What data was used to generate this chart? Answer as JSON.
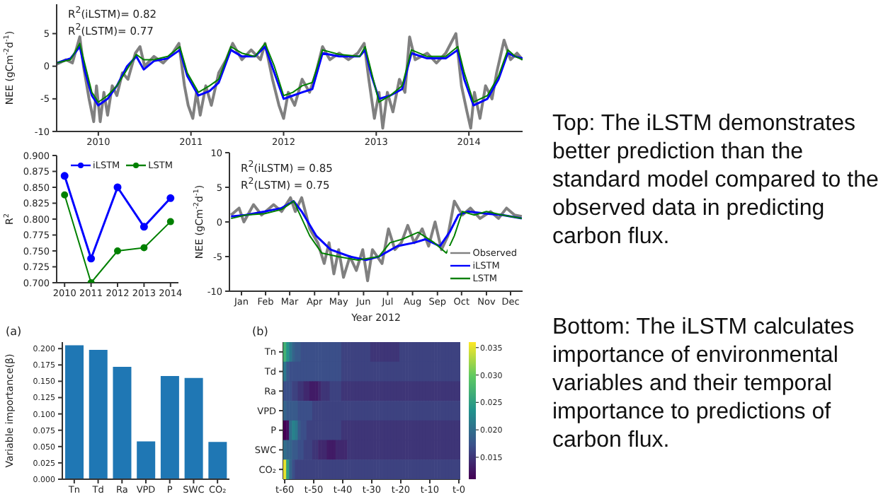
{
  "chart_data": [
    {
      "type": "line",
      "ylabel": "NEE (gCm$^{-2}$d$^{-1}$)",
      "annotations": [
        "R$^{2}$(iLSTM)= 0.82",
        "R$^{2}$(LSTM)= 0.77"
      ],
      "xlim": [
        2009.55,
        2014.58
      ],
      "xticks": [
        2010,
        2011,
        2012,
        2013,
        2014
      ],
      "ylim": [
        -10,
        9.5
      ],
      "yticks": [
        -10,
        -5,
        0,
        5
      ],
      "marker": "none",
      "line_style": "solid",
      "series": [
        {
          "color": "#808080",
          "x": [
            2009.55,
            2009.65,
            2009.72,
            2009.8,
            2009.84,
            2009.9,
            2009.95,
            2009.98,
            2010.02,
            2010.06,
            2010.1,
            2010.15,
            2010.2,
            2010.26,
            2010.32,
            2010.4,
            2010.45,
            2010.5,
            2010.6,
            2010.7,
            2010.8,
            2010.87,
            2010.93,
            2010.97,
            2011.02,
            2011.06,
            2011.1,
            2011.16,
            2011.22,
            2011.3,
            2011.38,
            2011.45,
            2011.55,
            2011.65,
            2011.75,
            2011.8,
            2011.88,
            2011.95,
            2012.0,
            2012.05,
            2012.12,
            2012.2,
            2012.28,
            2012.35,
            2012.42,
            2012.5,
            2012.6,
            2012.7,
            2012.8,
            2012.87,
            2012.92,
            2012.98,
            2013.03,
            2013.07,
            2013.12,
            2013.18,
            2013.25,
            2013.31,
            2013.36,
            2013.42,
            2013.55,
            2013.65,
            2013.75,
            2013.86,
            2013.92,
            2013.98,
            2014.02,
            2014.06,
            2014.12,
            2014.18,
            2014.25,
            2014.3,
            2014.38,
            2014.45,
            2014.52,
            2014.58
          ],
          "values": [
            0.3,
            1,
            0.5,
            4.5,
            0,
            -5,
            -8.5,
            -3,
            -8.5,
            -4,
            -7.5,
            -3,
            -4.5,
            -1,
            -2,
            2,
            3,
            0,
            1.5,
            0.5,
            2,
            3.5,
            -3,
            -6,
            -8,
            -4,
            -7.5,
            -3,
            -6,
            -1,
            1,
            3.5,
            1,
            2.5,
            1,
            3.5,
            -2,
            -6,
            -8,
            -4,
            -6,
            -2,
            -4,
            -1,
            3,
            1,
            2,
            1,
            2,
            3.5,
            -2,
            -8,
            -4,
            -9.5,
            -4,
            -7,
            -2,
            -4,
            4.5,
            1,
            2,
            0.5,
            2,
            5,
            -3,
            -7,
            -9.5,
            -4,
            -8,
            -3,
            -5,
            -1,
            4,
            1,
            2,
            1
          ]
        },
        {
          "color": "#0000ff",
          "x": [
            2009.55,
            2009.7,
            2009.8,
            2009.86,
            2009.93,
            2010.0,
            2010.1,
            2010.2,
            2010.31,
            2010.41,
            2010.49,
            2010.6,
            2010.75,
            2010.88,
            2010.96,
            2011.08,
            2011.2,
            2011.3,
            2011.43,
            2011.55,
            2011.69,
            2011.8,
            2011.9,
            2012.0,
            2012.1,
            2012.2,
            2012.31,
            2012.42,
            2012.6,
            2012.82,
            2012.88,
            2012.95,
            2013.03,
            2013.15,
            2013.28,
            2013.38,
            2013.55,
            2013.75,
            2013.88,
            2013.95,
            2014.05,
            2014.2,
            2014.32,
            2014.42,
            2014.5,
            2014.58
          ],
          "values": [
            0.5,
            1.2,
            3,
            -1,
            -4.5,
            -6,
            -5,
            -3,
            0,
            1.5,
            -0.5,
            0.8,
            1.2,
            2.5,
            -1.5,
            -4.5,
            -3.8,
            -2.5,
            2.5,
            1.5,
            1.5,
            3,
            -1,
            -5,
            -4.5,
            -4,
            -3.5,
            2,
            1.5,
            1.5,
            2.5,
            -1.5,
            -5,
            -4.5,
            -3.5,
            2,
            1.2,
            1.2,
            2.5,
            -2,
            -6,
            -5,
            -2,
            2,
            1.5,
            1.2
          ]
        },
        {
          "color": "#008000",
          "x": [
            2009.55,
            2009.7,
            2009.8,
            2009.86,
            2009.93,
            2010.0,
            2010.1,
            2010.2,
            2010.31,
            2010.41,
            2010.49,
            2010.6,
            2010.75,
            2010.88,
            2010.96,
            2011.08,
            2011.2,
            2011.3,
            2011.43,
            2011.55,
            2011.69,
            2011.8,
            2011.9,
            2012.0,
            2012.1,
            2012.2,
            2012.31,
            2012.42,
            2012.6,
            2012.82,
            2012.88,
            2012.95,
            2013.03,
            2013.15,
            2013.28,
            2013.38,
            2013.55,
            2013.75,
            2013.88,
            2013.95,
            2014.05,
            2014.2,
            2014.32,
            2014.42,
            2014.5,
            2014.58
          ],
          "values": [
            0.5,
            1,
            3.5,
            0,
            -4,
            -5.5,
            -4.5,
            -3,
            -0.5,
            1.8,
            1,
            1,
            1.5,
            3,
            -1,
            -4,
            -3,
            -2,
            3,
            2,
            1.5,
            3.5,
            0,
            -4.5,
            -4,
            -3,
            -2.5,
            2.5,
            1.8,
            1.5,
            3,
            -1,
            -5.5,
            -4.5,
            -3,
            2.5,
            1.5,
            1.5,
            3,
            -1,
            -5.5,
            -4.5,
            -1.5,
            2.5,
            1.5,
            1
          ]
        }
      ]
    },
    {
      "type": "line",
      "ylabel": "R$^{2}$",
      "categories": [
        "2010",
        "2011",
        "2012",
        "2013",
        "2014"
      ],
      "ylim": [
        0.7,
        0.9
      ],
      "yticks": [
        {
          "value": 0.7,
          "label": "0.700"
        },
        {
          "value": 0.725,
          "label": "0.725"
        },
        {
          "value": 0.75,
          "label": "0.750"
        },
        {
          "value": 0.775,
          "label": "0.775"
        },
        {
          "value": 0.8,
          "label": "0.800"
        },
        {
          "value": 0.825,
          "label": "0.825"
        },
        {
          "value": 0.85,
          "label": "0.850"
        },
        {
          "value": 0.875,
          "label": "0.875"
        },
        {
          "value": 0.9,
          "label": "0.900"
        }
      ],
      "marker": "circle",
      "legend": "top right",
      "series": [
        {
          "name": "iLSTM",
          "color": "#0000ff",
          "values": [
            0.868,
            0.738,
            0.85,
            0.788,
            0.833
          ]
        },
        {
          "name": "LSTM",
          "color": "#008000",
          "values": [
            0.838,
            0.7,
            0.75,
            0.755,
            0.796
          ]
        }
      ]
    },
    {
      "type": "line",
      "xlabel": "Year 2012",
      "ylabel": "NEE (gCm$^{-2}$d$^{-1}$)",
      "annotations": [
        "R$^{2}$(iLSTM) = 0.85",
        "R$^{2}$(LSTM) = 0.75"
      ],
      "xlim": [
        "2012-01-01",
        "2012-12-31"
      ],
      "xticks": [
        {
          "value": "2012-01-16",
          "label": "Jan"
        },
        {
          "value": "2012-02-15",
          "label": "Feb"
        },
        {
          "value": "2012-03-16",
          "label": "Mar"
        },
        {
          "value": "2012-04-16",
          "label": "Apr"
        },
        {
          "value": "2012-05-16",
          "label": "May"
        },
        {
          "value": "2012-06-16",
          "label": "Jun"
        },
        {
          "value": "2012-07-16",
          "label": "Jul"
        },
        {
          "value": "2012-08-16",
          "label": "Aug"
        },
        {
          "value": "2012-09-16",
          "label": "Sep"
        },
        {
          "value": "2012-10-16",
          "label": "Oct"
        },
        {
          "value": "2012-11-16",
          "label": "Nov"
        },
        {
          "value": "2012-12-16",
          "label": "Dec"
        }
      ],
      "ylim": [
        -10,
        10
      ],
      "yticks": [
        -10,
        -5,
        0,
        5,
        10
      ],
      "marker": "none",
      "legend": "bottom right",
      "series": [
        {
          "name": "Observed",
          "color": "#808080",
          "x": [
            "2012-01-03",
            "2012-01-13",
            "2012-01-19",
            "2012-01-31",
            "2012-02-10",
            "2012-02-25",
            "2012-03-06",
            "2012-03-17",
            "2012-03-23",
            "2012-03-31",
            "2012-04-10",
            "2012-04-20",
            "2012-04-28",
            "2012-05-04",
            "2012-05-10",
            "2012-05-16",
            "2012-05-22",
            "2012-05-30",
            "2012-06-07",
            "2012-06-15",
            "2012-06-21",
            "2012-06-27",
            "2012-07-09",
            "2012-07-17",
            "2012-07-25",
            "2012-08-02",
            "2012-08-10",
            "2012-08-18",
            "2012-08-28",
            "2012-09-05",
            "2012-09-13",
            "2012-09-21",
            "2012-09-29",
            "2012-10-07",
            "2012-10-17",
            "2012-10-27",
            "2012-11-08",
            "2012-11-21",
            "2012-12-01",
            "2012-12-11",
            "2012-12-21",
            "2012-12-30"
          ],
          "values": [
            1,
            2,
            0,
            2.5,
            1,
            2.5,
            1.5,
            3.5,
            1.5,
            3.5,
            -1,
            -3,
            -6,
            -3,
            -7.5,
            -4,
            -8,
            -5,
            -7,
            -4,
            -8.5,
            -4,
            -6,
            -1,
            -4,
            -3,
            -0.5,
            -3,
            -1,
            -3.5,
            0,
            -4,
            -2,
            3,
            1,
            2,
            0.5,
            1.5,
            0.5,
            2,
            1,
            0.8
          ]
        },
        {
          "name": "iLSTM",
          "color": "#0000ff",
          "x": [
            "2012-01-03",
            "2012-01-21",
            "2012-02-14",
            "2012-03-06",
            "2012-03-21",
            "2012-03-31",
            "2012-04-18",
            "2012-05-06",
            "2012-05-30",
            "2012-06-19",
            "2012-07-05",
            "2012-07-28",
            "2012-08-18",
            "2012-09-01",
            "2012-09-19",
            "2012-10-01",
            "2012-10-12",
            "2012-10-24",
            "2012-11-16",
            "2012-12-06",
            "2012-12-30"
          ],
          "values": [
            0.8,
            1,
            1.5,
            2,
            3,
            1.5,
            -2,
            -4,
            -5,
            -5.5,
            -5,
            -3.5,
            -3,
            -2.5,
            -3.5,
            -1.5,
            1,
            1.5,
            1.2,
            1,
            0.5
          ]
        },
        {
          "name": "LSTM",
          "color": "#008000",
          "x": [
            "2012-01-03",
            "2012-01-21",
            "2012-02-14",
            "2012-03-06",
            "2012-03-21",
            "2012-03-29",
            "2012-04-10",
            "2012-04-25",
            "2012-05-15",
            "2012-06-09",
            "2012-07-05",
            "2012-07-19",
            "2012-08-03",
            "2012-08-23",
            "2012-09-12",
            "2012-09-27",
            "2012-10-07",
            "2012-10-17",
            "2012-11-01",
            "2012-11-16",
            "2012-12-06",
            "2012-12-30"
          ],
          "values": [
            0.5,
            1,
            1.2,
            1.8,
            3,
            1,
            -2,
            -4.5,
            -5,
            -5.5,
            -5,
            -3,
            -2.5,
            -1.5,
            -3,
            -4.5,
            -2,
            1.5,
            1,
            1.5,
            1,
            0.5
          ]
        }
      ]
    },
    {
      "type": "bar",
      "ylabel": "Variable importance(β)",
      "annotations": [
        "(a)"
      ],
      "categories": [
        "Tn",
        "Td",
        "Ra",
        "VPD",
        "P",
        "SWC",
        "CO₂"
      ],
      "values": [
        0.205,
        0.198,
        0.172,
        0.058,
        0.158,
        0.155,
        0.057
      ],
      "color": "#1f77b4",
      "ylim": [
        0,
        0.21
      ],
      "yticks": [
        {
          "value": 0,
          "label": "0.000"
        },
        {
          "value": 0.025,
          "label": "0.025"
        },
        {
          "value": 0.05,
          "label": "0.050"
        },
        {
          "value": 0.075,
          "label": "0.075"
        },
        {
          "value": 0.1,
          "label": "0.100"
        },
        {
          "value": 0.125,
          "label": "0.125"
        },
        {
          "value": 0.15,
          "label": "0.150"
        },
        {
          "value": 0.175,
          "label": "0.175"
        },
        {
          "value": 0.2,
          "label": "0.200"
        }
      ]
    },
    {
      "type": "heatmap",
      "annotations": [
        "(b)"
      ],
      "categories": [
        "t-60",
        null,
        null,
        null,
        null,
        null,
        null,
        null,
        null,
        null,
        "t-50",
        null,
        null,
        null,
        null,
        null,
        null,
        null,
        null,
        null,
        "t-40",
        null,
        null,
        null,
        null,
        null,
        null,
        null,
        null,
        null,
        "t-30",
        null,
        null,
        null,
        null,
        null,
        null,
        null,
        null,
        null,
        "t-20",
        null,
        null,
        null,
        null,
        null,
        null,
        null,
        null,
        null,
        "t-10",
        null,
        null,
        null,
        null,
        null,
        null,
        null,
        null,
        null,
        "t-0"
      ],
      "y_categories": [
        "Tn",
        "Td",
        "Ra",
        "VPD",
        "P",
        "SWC",
        "CO₂"
      ],
      "clim": [
        0.011,
        0.036
      ],
      "cticks": [
        {
          "value": 0.015,
          "label": "0.015"
        },
        {
          "value": 0.02,
          "label": "0.020"
        },
        {
          "value": 0.025,
          "label": "0.025"
        },
        {
          "value": 0.03,
          "label": "0.030"
        },
        {
          "value": 0.035,
          "label": "0.035"
        }
      ],
      "cells": [
        [
          0.027,
          0.024,
          0.021,
          0.019,
          0.018,
          0.018,
          0.017,
          0.017,
          0.017,
          0.017,
          0.017,
          0.017,
          0.017,
          0.017,
          0.017,
          0.017,
          0.017,
          0.017,
          0.017,
          0.017,
          0.016,
          0.016,
          0.016,
          0.016,
          0.016,
          0.016,
          0.016,
          0.016,
          0.016,
          0.016,
          0.015,
          0.015,
          0.015,
          0.015,
          0.015,
          0.015,
          0.015,
          0.015,
          0.015,
          0.015,
          0.016,
          0.016,
          0.016,
          0.016,
          0.016,
          0.016,
          0.016,
          0.016,
          0.016,
          0.016,
          0.016,
          0.016,
          0.016,
          0.016,
          0.016,
          0.016,
          0.016,
          0.016,
          0.016,
          0.016,
          0.016
        ],
        [
          0.021,
          0.018,
          0.017,
          0.017,
          0.017,
          0.017,
          0.017,
          0.017,
          0.017,
          0.017,
          0.017,
          0.017,
          0.017,
          0.017,
          0.017,
          0.017,
          0.017,
          0.017,
          0.017,
          0.017,
          0.016,
          0.016,
          0.016,
          0.016,
          0.016,
          0.016,
          0.016,
          0.016,
          0.016,
          0.016,
          0.016,
          0.016,
          0.016,
          0.016,
          0.016,
          0.016,
          0.016,
          0.016,
          0.016,
          0.016,
          0.016,
          0.016,
          0.016,
          0.016,
          0.016,
          0.016,
          0.016,
          0.016,
          0.016,
          0.016,
          0.016,
          0.016,
          0.016,
          0.016,
          0.016,
          0.016,
          0.016,
          0.016,
          0.016,
          0.016,
          0.016
        ],
        [
          0.017,
          0.017,
          0.017,
          0.016,
          0.016,
          0.015,
          0.015,
          0.014,
          0.014,
          0.013,
          0.013,
          0.013,
          0.014,
          0.015,
          0.015,
          0.015,
          0.016,
          0.016,
          0.016,
          0.016,
          0.015,
          0.015,
          0.015,
          0.015,
          0.015,
          0.015,
          0.015,
          0.015,
          0.015,
          0.015,
          0.015,
          0.015,
          0.015,
          0.015,
          0.015,
          0.015,
          0.015,
          0.015,
          0.015,
          0.015,
          0.015,
          0.015,
          0.015,
          0.015,
          0.015,
          0.015,
          0.015,
          0.015,
          0.015,
          0.015,
          0.015,
          0.015,
          0.015,
          0.015,
          0.015,
          0.015,
          0.015,
          0.015,
          0.015,
          0.015,
          0.015
        ],
        [
          0.019,
          0.018,
          0.018,
          0.018,
          0.018,
          0.017,
          0.017,
          0.017,
          0.017,
          0.017,
          0.016,
          0.016,
          0.016,
          0.016,
          0.016,
          0.016,
          0.016,
          0.016,
          0.016,
          0.016,
          0.016,
          0.016,
          0.016,
          0.016,
          0.016,
          0.016,
          0.016,
          0.016,
          0.016,
          0.016,
          0.016,
          0.016,
          0.016,
          0.016,
          0.016,
          0.016,
          0.016,
          0.016,
          0.016,
          0.016,
          0.016,
          0.016,
          0.016,
          0.016,
          0.016,
          0.016,
          0.016,
          0.016,
          0.016,
          0.016,
          0.016,
          0.016,
          0.016,
          0.016,
          0.016,
          0.016,
          0.016,
          0.016,
          0.016,
          0.016,
          0.016
        ],
        [
          0.011,
          0.012,
          0.02,
          0.022,
          0.021,
          0.018,
          0.017,
          0.017,
          0.016,
          0.016,
          0.016,
          0.016,
          0.016,
          0.016,
          0.016,
          0.016,
          0.016,
          0.016,
          0.016,
          0.016,
          0.015,
          0.015,
          0.015,
          0.015,
          0.015,
          0.015,
          0.015,
          0.015,
          0.015,
          0.015,
          0.015,
          0.015,
          0.015,
          0.015,
          0.015,
          0.015,
          0.015,
          0.015,
          0.015,
          0.015,
          0.015,
          0.015,
          0.015,
          0.015,
          0.015,
          0.015,
          0.015,
          0.015,
          0.015,
          0.015,
          0.015,
          0.015,
          0.015,
          0.015,
          0.015,
          0.015,
          0.015,
          0.015,
          0.015,
          0.015,
          0.015
        ],
        [
          0.02,
          0.019,
          0.019,
          0.018,
          0.018,
          0.017,
          0.017,
          0.016,
          0.016,
          0.016,
          0.015,
          0.015,
          0.014,
          0.014,
          0.014,
          0.013,
          0.013,
          0.013,
          0.014,
          0.014,
          0.014,
          0.014,
          0.015,
          0.015,
          0.015,
          0.015,
          0.015,
          0.015,
          0.015,
          0.015,
          0.015,
          0.015,
          0.015,
          0.015,
          0.015,
          0.015,
          0.015,
          0.015,
          0.015,
          0.015,
          0.015,
          0.015,
          0.015,
          0.015,
          0.015,
          0.015,
          0.015,
          0.015,
          0.015,
          0.015,
          0.015,
          0.015,
          0.015,
          0.015,
          0.015,
          0.015,
          0.015,
          0.015,
          0.015,
          0.015,
          0.015
        ],
        [
          0.035,
          0.025,
          0.019,
          0.017,
          0.016,
          0.016,
          0.016,
          0.016,
          0.016,
          0.016,
          0.016,
          0.016,
          0.016,
          0.016,
          0.016,
          0.016,
          0.016,
          0.016,
          0.016,
          0.016,
          0.016,
          0.016,
          0.016,
          0.016,
          0.016,
          0.016,
          0.016,
          0.016,
          0.016,
          0.016,
          0.016,
          0.016,
          0.016,
          0.016,
          0.016,
          0.016,
          0.016,
          0.016,
          0.016,
          0.016,
          0.016,
          0.016,
          0.016,
          0.016,
          0.016,
          0.016,
          0.016,
          0.016,
          0.016,
          0.016,
          0.016,
          0.016,
          0.016,
          0.016,
          0.016,
          0.016,
          0.016,
          0.016,
          0.016,
          0.016,
          0.016
        ]
      ]
    },
    {
      "type": "other",
      "annotations": [
        "Top: The iLSTM demonstrates better prediction than the standard model compared to the observed data in predicting carbon flux.",
        "Bottom: The iLSTM calculates importance of environmental variables and their temporal importance to predictions of carbon flux."
      ]
    }
  ]
}
